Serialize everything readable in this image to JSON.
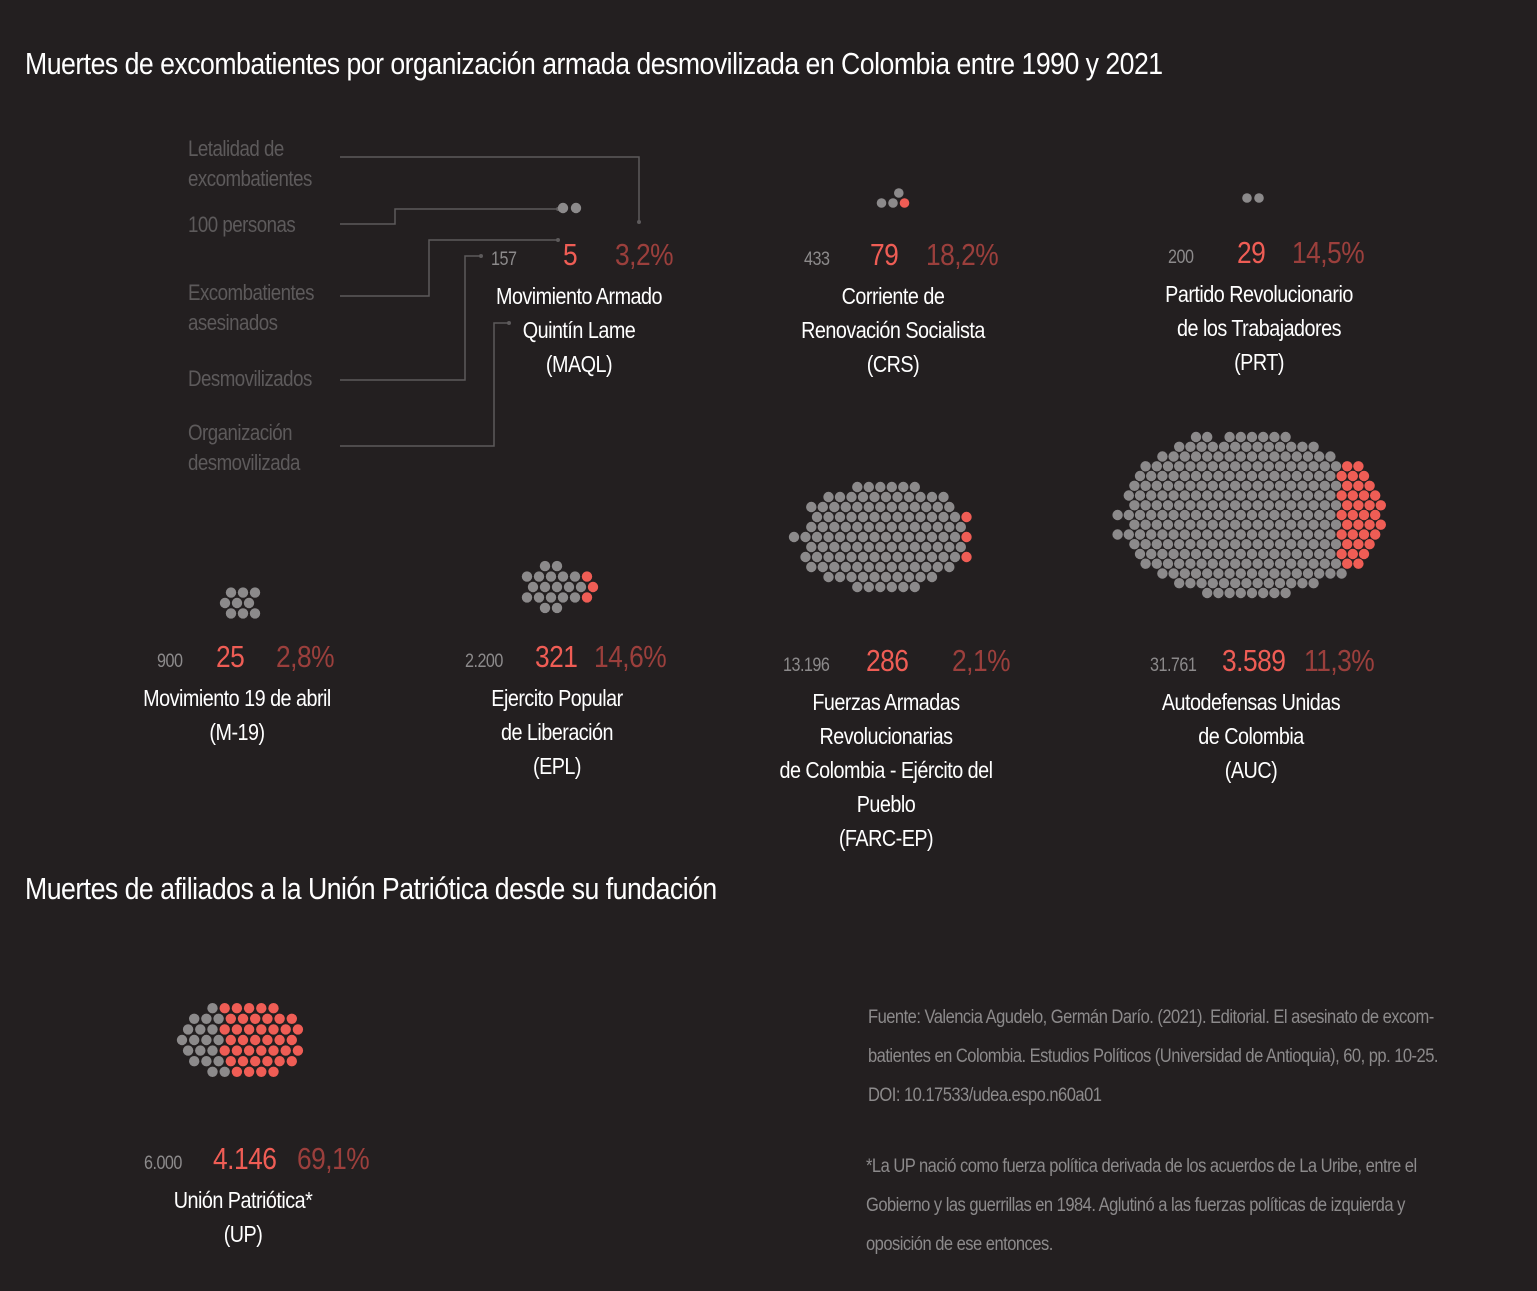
{
  "headings": {
    "main": "Muertes de excombatientes por organización armada desmovilizada en Colombia entre 1990 y 2021",
    "up": "Muertes de afiliados a la Unión Patriótica desde su fundación"
  },
  "legend": {
    "lethality": "Letalidad de\nexcombatientes",
    "unit": "100 personas",
    "killed": "Excombatientes\nasesinados",
    "demobilized": "Desmovilizados",
    "organization": "Organización\ndesmovilizada"
  },
  "colors": {
    "background": "#231f20",
    "alive": "#8c8a8b",
    "killed": "#ef5d55",
    "percent": "#9b3f3c",
    "legend": "#5d5a5b"
  },
  "chart_data": {
    "type": "dot-matrix",
    "unit_note": "1 dot = 100 personas",
    "groups": [
      {
        "key": "maql",
        "name": "Movimiento Armado\nQuintín Lame\n(MAQL)",
        "demobilized": "157",
        "killed": "5",
        "lethality": "3,2%",
        "demobilized_value": 157,
        "killed_value": 5,
        "lethality_value": 3.2
      },
      {
        "key": "crs",
        "name": "Corriente de\nRenovación Socialista\n(CRS)",
        "demobilized": "433",
        "killed": "79",
        "lethality": "18,2%",
        "demobilized_value": 433,
        "killed_value": 79,
        "lethality_value": 18.2
      },
      {
        "key": "prt",
        "name": "Partido Revolucionario\nde los Trabajadores\n(PRT)",
        "demobilized": "200",
        "killed": "29",
        "lethality": "14,5%",
        "demobilized_value": 200,
        "killed_value": 29,
        "lethality_value": 14.5
      },
      {
        "key": "m19",
        "name": "Movimiento 19 de abril\n(M-19)",
        "demobilized": "900",
        "killed": "25",
        "lethality": "2,8%",
        "demobilized_value": 900,
        "killed_value": 25,
        "lethality_value": 2.8
      },
      {
        "key": "epl",
        "name": "Ejercito Popular\nde Liberación\n(EPL)",
        "demobilized": "2.200",
        "killed": "321",
        "lethality": "14,6%",
        "demobilized_value": 2200,
        "killed_value": 321,
        "lethality_value": 14.6
      },
      {
        "key": "farc",
        "name": "Fuerzas Armadas Revolucionarias\nde Colombia - Ejército del Pueblo\n(FARC-EP)",
        "demobilized": "13.196",
        "killed": "286",
        "lethality": "2,1%",
        "demobilized_value": 13196,
        "killed_value": 286,
        "lethality_value": 2.1
      },
      {
        "key": "auc",
        "name": "Autodefensas Unidas\nde Colombia\n(AUC)",
        "demobilized": "31.761",
        "killed": "3.589",
        "lethality": "11,3%",
        "demobilized_value": 31761,
        "killed_value": 3589,
        "lethality_value": 11.3
      },
      {
        "key": "up",
        "name": "Unión Patriótica*\n(UP)",
        "demobilized": "6.000",
        "killed": "4.146",
        "lethality": "69,1%",
        "demobilized_value": 6000,
        "killed_value": 4146,
        "lethality_value": 69.1
      }
    ]
  },
  "source": "Fuente: Valencia Agudelo, Germán Darío. (2021). Editorial. El asesinato de excom-\nbatientes en Colombia. Estudios Políticos (Universidad de Antioquia), 60, pp. 10-25.\nDOI: 10.17533/udea.espo.n60a01",
  "footnote": "*La UP nació como fuerza política derivada de los acuerdos de La Uribe, entre el\nGobierno y las guerrillas en 1984. Aglutinó a las fuerzas políticas de izquierda y\noposición de ese entonces."
}
